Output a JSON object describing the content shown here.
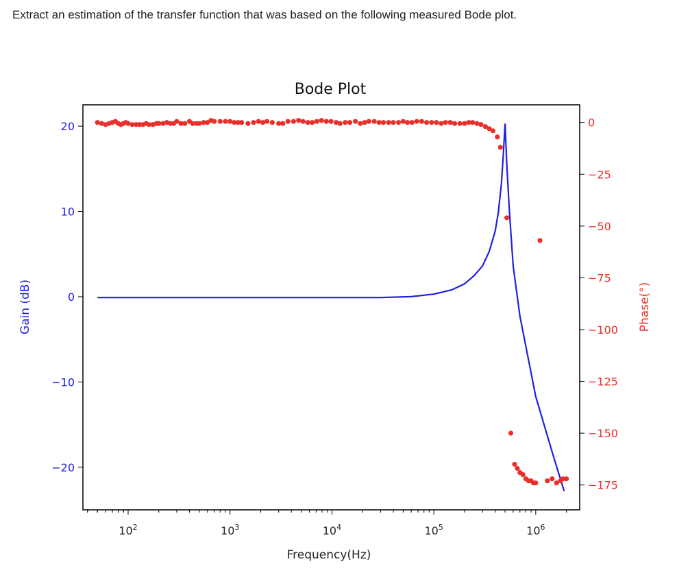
{
  "question": "Extract an estimation of the transfer function that was based on the following measured Bode plot.",
  "chart_data": {
    "type": "line",
    "title": "Bode Plot",
    "xlabel": "Frequency(Hz)",
    "ylabel_left": "Gain (dB)",
    "ylabel_right": "Phase(°)",
    "x_scale": "log",
    "xlim": [
      36,
      2700000
    ],
    "ylim_left": [
      -25,
      22.5
    ],
    "ylim_right": [
      -187,
      8.5
    ],
    "x_ticks": [
      {
        "value": 100,
        "base": "10",
        "exp": "2"
      },
      {
        "value": 1000,
        "base": "10",
        "exp": "3"
      },
      {
        "value": 10000,
        "base": "10",
        "exp": "4"
      },
      {
        "value": 100000,
        "base": "10",
        "exp": "5"
      },
      {
        "value": 1000000,
        "base": "10",
        "exp": "6"
      }
    ],
    "y_ticks_left": [
      {
        "value": 20,
        "label": "20"
      },
      {
        "value": 10,
        "label": "10"
      },
      {
        "value": 0,
        "label": "0"
      },
      {
        "value": -10,
        "label": "−10"
      },
      {
        "value": -20,
        "label": "−20"
      }
    ],
    "y_ticks_right": [
      {
        "value": 0,
        "label": "0"
      },
      {
        "value": -25,
        "label": "−25"
      },
      {
        "value": -50,
        "label": "−50"
      },
      {
        "value": -75,
        "label": "−75"
      },
      {
        "value": -100,
        "label": "−100"
      },
      {
        "value": -125,
        "label": "−125"
      },
      {
        "value": -150,
        "label": "−150"
      },
      {
        "value": -175,
        "label": "−175"
      }
    ],
    "colors": {
      "gain": "#1f1fe0",
      "phase": "#e8302a",
      "axis": "#000000"
    },
    "series": [
      {
        "axis": "left",
        "style": "line",
        "points": [
          [
            50,
            -0.1
          ],
          [
            100,
            -0.1
          ],
          [
            1000,
            -0.1
          ],
          [
            10000,
            -0.1
          ],
          [
            30000,
            -0.1
          ],
          [
            60000,
            0.0
          ],
          [
            100000,
            0.3
          ],
          [
            150000,
            0.8
          ],
          [
            200000,
            1.5
          ],
          [
            250000,
            2.5
          ],
          [
            300000,
            3.6
          ],
          [
            350000,
            5.3
          ],
          [
            400000,
            7.7
          ],
          [
            430000,
            9.9
          ],
          [
            460000,
            13.2
          ],
          [
            480000,
            16.5
          ],
          [
            500000,
            20.3
          ],
          [
            520000,
            15.5
          ],
          [
            550000,
            10.3
          ],
          [
            600000,
            3.6
          ],
          [
            700000,
            -2.3
          ],
          [
            1000000,
            -11.7
          ],
          [
            1500000,
            -18.8
          ],
          [
            1900000,
            -22.8
          ]
        ]
      },
      {
        "axis": "right",
        "style": "scatter",
        "points": [
          [
            50,
            0
          ],
          [
            55,
            -0.5
          ],
          [
            60,
            -1
          ],
          [
            65,
            -0.5
          ],
          [
            70,
            0
          ],
          [
            75,
            0.5
          ],
          [
            80,
            -0.5
          ],
          [
            85,
            -1
          ],
          [
            90,
            -0.5
          ],
          [
            95,
            0
          ],
          [
            100,
            -0.5
          ],
          [
            110,
            -1
          ],
          [
            120,
            -1
          ],
          [
            130,
            -1
          ],
          [
            140,
            -1
          ],
          [
            150,
            -0.5
          ],
          [
            160,
            -1
          ],
          [
            175,
            -1
          ],
          [
            190,
            -0.5
          ],
          [
            200,
            -0.5
          ],
          [
            220,
            -0.5
          ],
          [
            240,
            0
          ],
          [
            260,
            -0.5
          ],
          [
            280,
            -0.5
          ],
          [
            300,
            0.5
          ],
          [
            330,
            -0.5
          ],
          [
            360,
            -0.5
          ],
          [
            400,
            0.5
          ],
          [
            430,
            -0.5
          ],
          [
            470,
            -0.5
          ],
          [
            500,
            -0.5
          ],
          [
            550,
            0
          ],
          [
            600,
            0
          ],
          [
            650,
            1
          ],
          [
            700,
            0.5
          ],
          [
            800,
            0.5
          ],
          [
            900,
            0.5
          ],
          [
            1000,
            0.5
          ],
          [
            1100,
            0
          ],
          [
            1200,
            0
          ],
          [
            1300,
            0
          ],
          [
            1500,
            -0.5
          ],
          [
            1700,
            0
          ],
          [
            1900,
            0.5
          ],
          [
            2100,
            0
          ],
          [
            2300,
            0.5
          ],
          [
            2600,
            0
          ],
          [
            3000,
            -0.5
          ],
          [
            3300,
            -0.5
          ],
          [
            3700,
            0.5
          ],
          [
            4200,
            0.5
          ],
          [
            4700,
            1
          ],
          [
            5200,
            0.5
          ],
          [
            5800,
            0
          ],
          [
            6400,
            0
          ],
          [
            7100,
            0.5
          ],
          [
            7900,
            1
          ],
          [
            8800,
            0.5
          ],
          [
            9800,
            0.5
          ],
          [
            11000,
            0
          ],
          [
            12000,
            -0.5
          ],
          [
            13500,
            0
          ],
          [
            15000,
            0
          ],
          [
            17000,
            0.5
          ],
          [
            19000,
            -0.5
          ],
          [
            21000,
            0
          ],
          [
            23000,
            0.5
          ],
          [
            26000,
            0.5
          ],
          [
            29000,
            0
          ],
          [
            32000,
            0
          ],
          [
            36000,
            0
          ],
          [
            40000,
            0
          ],
          [
            45000,
            0
          ],
          [
            50000,
            0.5
          ],
          [
            55000,
            0
          ],
          [
            61000,
            0
          ],
          [
            68000,
            0.5
          ],
          [
            76000,
            0.5
          ],
          [
            85000,
            0
          ],
          [
            95000,
            0
          ],
          [
            106000,
            0
          ],
          [
            118000,
            -0.5
          ],
          [
            130000,
            0
          ],
          [
            145000,
            0
          ],
          [
            160000,
            -0.5
          ],
          [
            180000,
            -0.5
          ],
          [
            200000,
            -0.5
          ],
          [
            220000,
            0
          ],
          [
            240000,
            0
          ],
          [
            265000,
            -0.5
          ],
          [
            290000,
            -1
          ],
          [
            320000,
            -2
          ],
          [
            350000,
            -3
          ],
          [
            380000,
            -4
          ],
          [
            420000,
            -7
          ],
          [
            450000,
            -12
          ],
          [
            520000,
            -46
          ],
          [
            570000,
            -150
          ],
          [
            620000,
            -165
          ],
          [
            660000,
            -167
          ],
          [
            700000,
            -169
          ],
          [
            750000,
            -170
          ],
          [
            800000,
            -172
          ],
          [
            850000,
            -173
          ],
          [
            900000,
            -173
          ],
          [
            950000,
            -174
          ],
          [
            1000000,
            -174
          ],
          [
            1100000,
            -57
          ],
          [
            1300000,
            -173
          ],
          [
            1450000,
            -172
          ],
          [
            1600000,
            -174
          ],
          [
            1750000,
            -173
          ],
          [
            1850000,
            -172
          ],
          [
            2000000,
            -172
          ]
        ]
      }
    ]
  }
}
